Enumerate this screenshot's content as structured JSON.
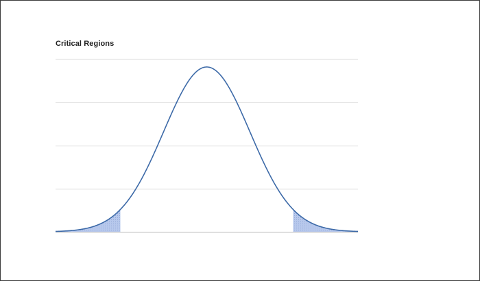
{
  "chart_data": {
    "type": "area",
    "title": "Critical Regions",
    "xlabel": "",
    "ylabel": "",
    "xlim": [
      -3.5,
      3.5
    ],
    "ylim": [
      0,
      0.4
    ],
    "grid": true,
    "gridlines_y": [
      0.1,
      0.2,
      0.3,
      0.4
    ],
    "curve": {
      "distribution": "normal",
      "mean": 0,
      "sd": 1,
      "peak_density": 0.3989
    },
    "critical_regions": [
      {
        "side": "left",
        "x_from": -3.5,
        "x_to": -2.0
      },
      {
        "side": "right",
        "x_from": 2.0,
        "x_to": 3.5
      }
    ],
    "colors": {
      "line": "#3d6aa8",
      "critical_fill": "#b7c8ec",
      "gridline": "#d9d9d9",
      "baseline": "#b5b5b5"
    }
  }
}
